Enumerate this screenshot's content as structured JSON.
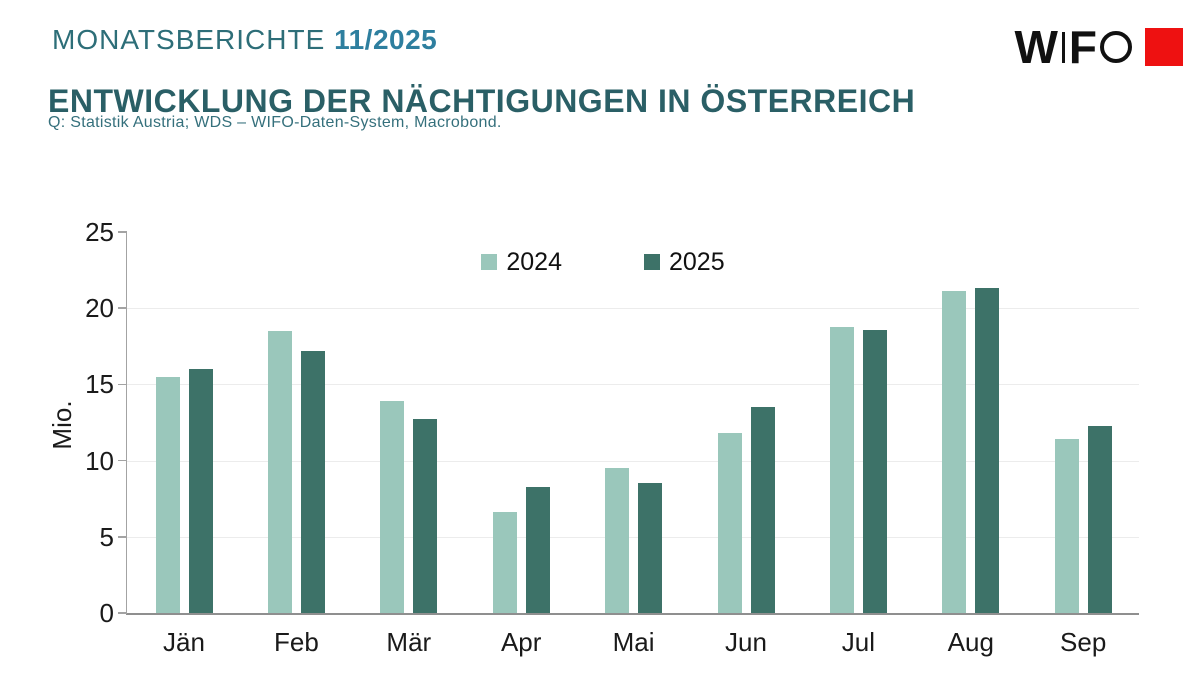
{
  "header": {
    "kicker": "MONATSBERICHTE",
    "issue": "11/2025",
    "title": "ENTWICKLUNG DER NÄCHTIGUNGEN IN ÖSTERREICH",
    "source": "Q: Statistik Austria; WDS – WIFO-Daten-System, Macrobond."
  },
  "logo": {
    "letter_w": "W",
    "letter_f": "F"
  },
  "colors": {
    "kicker_teal": "#2D6E78",
    "issue_teal": "#2E7F9F",
    "title_teal": "#2A5F66",
    "source_teal": "#35707C",
    "logo_red": "#EE1111",
    "axis_gray": "#A3A3A3",
    "grid_gray": "#ECECEC"
  },
  "chart_data": {
    "type": "bar",
    "title": "Entwicklung der Nächtigungen in Österreich",
    "categories": [
      "Jän",
      "Feb",
      "Mär",
      "Apr",
      "Mai",
      "Jun",
      "Jul",
      "Aug",
      "Sep"
    ],
    "series": [
      {
        "name": "2024",
        "color": "#9AC7BB",
        "values": [
          15.5,
          18.5,
          13.9,
          6.6,
          9.5,
          11.8,
          18.8,
          21.1,
          11.4
        ]
      },
      {
        "name": "2025",
        "color": "#3D7268",
        "values": [
          16.0,
          17.2,
          12.7,
          8.3,
          8.5,
          13.5,
          18.6,
          21.3,
          12.3
        ]
      }
    ],
    "xlabel": "",
    "ylabel": "Mio.",
    "ylim": [
      0,
      25
    ],
    "yticks": [
      0,
      5,
      10,
      15,
      20,
      25
    ],
    "grid": true,
    "legend_position": "top-center"
  }
}
